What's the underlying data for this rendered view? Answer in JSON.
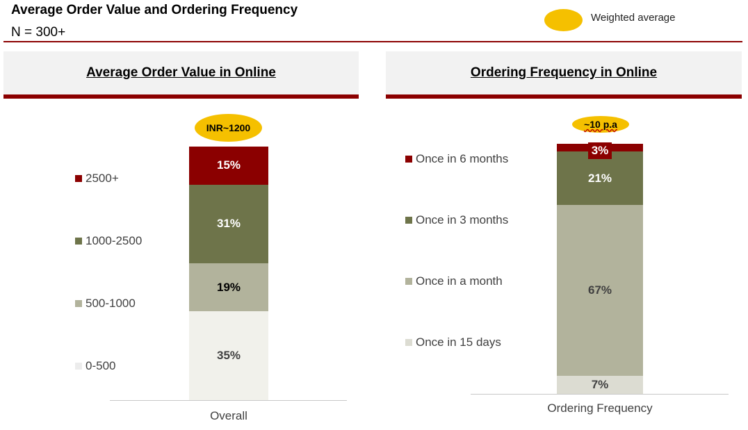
{
  "header": {
    "title": "Average Order Value and Ordering Frequency",
    "subtitle": "N = 300+",
    "legend_label": "Weighted average"
  },
  "chart_data": [
    {
      "type": "bar",
      "stacked": true,
      "title": "Average Order Value in Online",
      "categories": [
        "Overall"
      ],
      "series": [
        {
          "name": "0-500",
          "values": [
            35
          ],
          "label": "35%",
          "color": "#f1f1eb",
          "text_color": "#404040"
        },
        {
          "name": "500-1000",
          "values": [
            19
          ],
          "label": "19%",
          "color": "#b2b39c",
          "text_color": "#000000"
        },
        {
          "name": "1000-2500",
          "values": [
            31
          ],
          "label": "31%",
          "color": "#6e744a",
          "text_color": "#ffffff"
        },
        {
          "name": "2500+",
          "values": [
            15
          ],
          "label": "15%",
          "color": "#8b0000",
          "text_color": "#ffffff"
        }
      ],
      "annotation": {
        "line1": "INR",
        "line2": "~1200"
      },
      "legend_placement": "left"
    },
    {
      "type": "bar",
      "stacked": true,
      "title": "Ordering Frequency in Online",
      "categories": [
        "Ordering Frequency"
      ],
      "series": [
        {
          "name": "Once in 15 days",
          "values": [
            7
          ],
          "label": "7%",
          "color": "#dcdcd2",
          "text_color": "#404040"
        },
        {
          "name": "Once in a month",
          "values": [
            67
          ],
          "label": "67%",
          "color": "#b2b39c",
          "text_color": "#404040"
        },
        {
          "name": "Once in 3 months",
          "values": [
            21
          ],
          "label": "21%",
          "color": "#6e744a",
          "text_color": "#ffffff"
        },
        {
          "name": "Once in 6 months",
          "values": [
            3
          ],
          "label": "3%",
          "color": "#8b0000",
          "text_color": "#ffffff"
        }
      ],
      "annotation": {
        "line1": "~10 p.a"
      },
      "legend_placement": "left"
    }
  ],
  "colors": {
    "accent": "#8b0000",
    "highlight": "#f5c000",
    "panel_bg": "#f2f2f2"
  }
}
